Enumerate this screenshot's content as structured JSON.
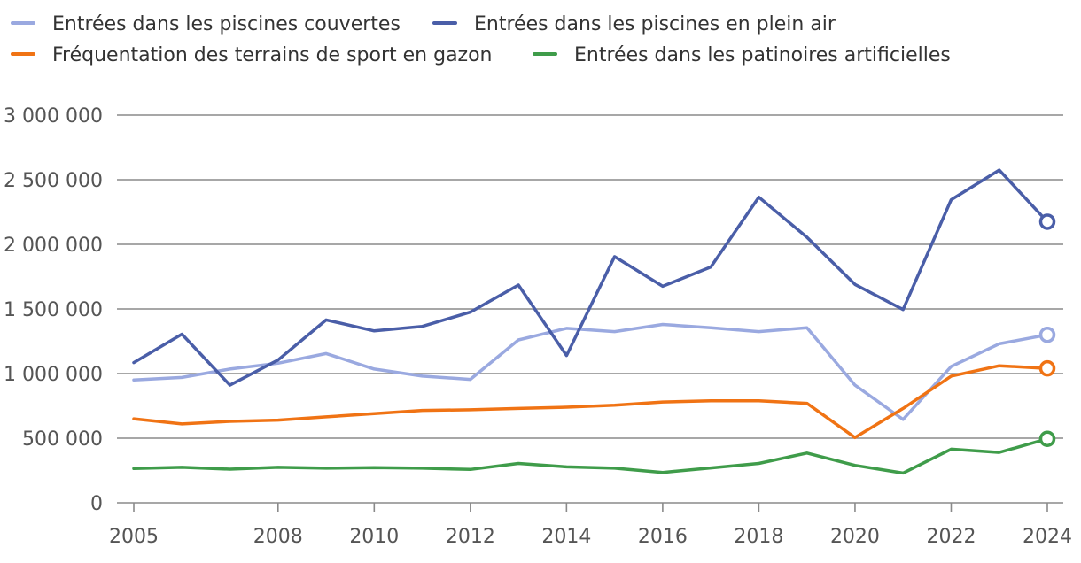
{
  "chart_data": {
    "type": "line",
    "title": "",
    "xlabel": "",
    "ylabel": "",
    "x": [
      2005,
      2006,
      2007,
      2008,
      2009,
      2010,
      2011,
      2012,
      2013,
      2014,
      2015,
      2016,
      2017,
      2018,
      2019,
      2020,
      2021,
      2022,
      2023,
      2024
    ],
    "x_ticks": [
      2005,
      2008,
      2010,
      2012,
      2014,
      2016,
      2018,
      2020,
      2022,
      2024
    ],
    "xlim": [
      2005,
      2024
    ],
    "ylim": [
      0,
      3000000
    ],
    "y_ticks": [
      {
        "value": 0,
        "label": "0"
      },
      {
        "value": 500000,
        "label": "500 000"
      },
      {
        "value": 1000000,
        "label": "1 000 000"
      },
      {
        "value": 1500000,
        "label": "1 500 000"
      },
      {
        "value": 2000000,
        "label": "2 000 000"
      },
      {
        "value": 2500000,
        "label": "2 500 000"
      },
      {
        "value": 3000000,
        "label": "3 000 000"
      }
    ],
    "grid": true,
    "legend_position": "top",
    "series": [
      {
        "name": "Entrées dans les piscines couvertes",
        "color": "#9aa9e0",
        "values": [
          950000,
          970000,
          1035000,
          1080000,
          1155000,
          1035000,
          980000,
          955000,
          1260000,
          1350000,
          1325000,
          1380000,
          1355000,
          1325000,
          1355000,
          910000,
          645000,
          1055000,
          1230000,
          1300000
        ]
      },
      {
        "name": "Entrées dans les piscines en plein air",
        "color": "#4a5ea8",
        "values": [
          1085000,
          1305000,
          910000,
          1105000,
          1415000,
          1330000,
          1365000,
          1475000,
          1685000,
          1140000,
          1905000,
          1675000,
          1825000,
          2365000,
          2055000,
          1690000,
          1495000,
          2345000,
          2575000,
          2175000
        ]
      },
      {
        "name": "Fréquentation des terrains de sport en gazon",
        "color": "#f07314",
        "values": [
          650000,
          610000,
          630000,
          640000,
          665000,
          690000,
          715000,
          720000,
          730000,
          740000,
          755000,
          780000,
          790000,
          790000,
          770000,
          505000,
          730000,
          980000,
          1060000,
          1040000
        ]
      },
      {
        "name": "Entrées dans les patinoires artificielles",
        "color": "#3f9c4a",
        "values": [
          265000,
          275000,
          260000,
          275000,
          268000,
          272000,
          268000,
          258000,
          305000,
          278000,
          268000,
          235000,
          270000,
          305000,
          385000,
          290000,
          230000,
          415000,
          390000,
          495000
        ]
      }
    ]
  }
}
